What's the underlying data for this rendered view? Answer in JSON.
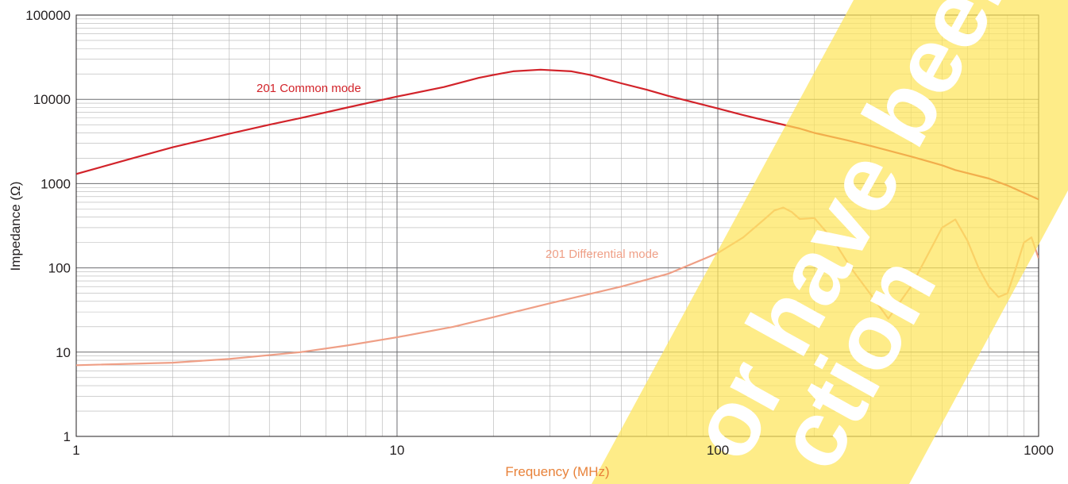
{
  "chart_data": {
    "type": "line",
    "title": "",
    "xlabel": "Frequency (MHz)",
    "ylabel": "Impedance (Ω)",
    "x_scale": "log",
    "y_scale": "log",
    "xlim": [
      1,
      1000
    ],
    "ylim": [
      1,
      100000
    ],
    "x_ticks": [
      "1",
      "10",
      "100",
      "1000"
    ],
    "y_ticks": [
      "1",
      "10",
      "100",
      "1000",
      "10000",
      "100000"
    ],
    "grid": true,
    "series": [
      {
        "name": "201 Common mode",
        "color": "#d2232a",
        "x": [
          1,
          1.5,
          2,
          2.5,
          3,
          4,
          5,
          7,
          10,
          14,
          18,
          20,
          23,
          28,
          35,
          40,
          50,
          60,
          70,
          100,
          120,
          150,
          180,
          200,
          250,
          300,
          400,
          500,
          550,
          700,
          800,
          1000
        ],
        "y": [
          1300,
          2000,
          2700,
          3300,
          3900,
          5000,
          6000,
          8000,
          10800,
          14000,
          18000,
          19500,
          21500,
          22500,
          21500,
          19500,
          15500,
          13000,
          11000,
          7800,
          6500,
          5300,
          4500,
          4000,
          3300,
          2800,
          2100,
          1650,
          1450,
          1150,
          950,
          650
        ]
      },
      {
        "name": "201 Differential mode",
        "color": "#ef9f86",
        "x": [
          1,
          2,
          3,
          5,
          7,
          10,
          15,
          20,
          30,
          50,
          70,
          100,
          120,
          140,
          150,
          160,
          170,
          180,
          200,
          230,
          260,
          300,
          340,
          400,
          450,
          500,
          550,
          600,
          650,
          700,
          750,
          800,
          850,
          900,
          950,
          1000
        ],
        "y": [
          7,
          7.5,
          8.3,
          10,
          12,
          15,
          20,
          26,
          38,
          60,
          85,
          150,
          230,
          380,
          480,
          520,
          460,
          380,
          390,
          210,
          100,
          48,
          25,
          60,
          140,
          300,
          375,
          210,
          100,
          60,
          45,
          50,
          100,
          200,
          230,
          130
        ]
      }
    ]
  }
}
